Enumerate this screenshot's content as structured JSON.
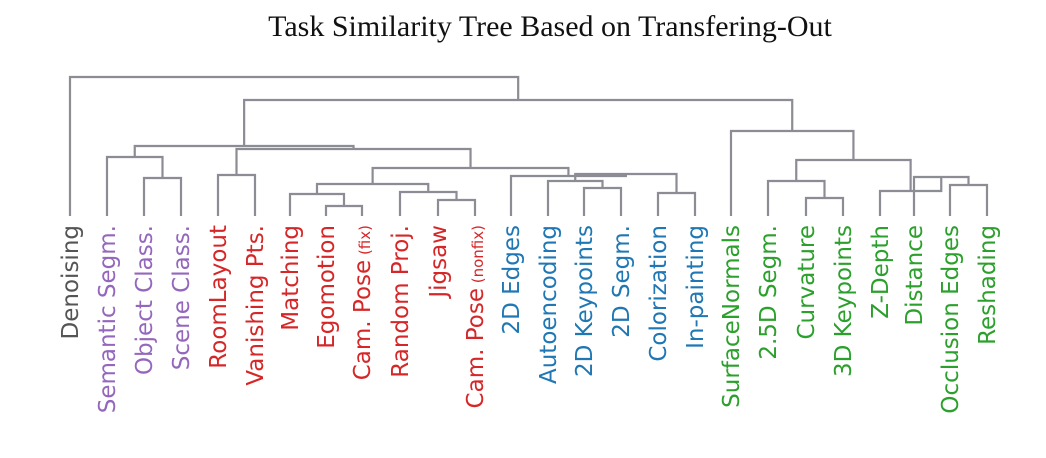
{
  "title": "Task Similarity Tree Based on Transfering-Out",
  "colors": {
    "branch": "#8c8c94",
    "gray": "#555555",
    "purple": "#9467bd",
    "red": "#d62728",
    "blue": "#1f77b4",
    "green": "#2ca02c"
  },
  "leaves": [
    {
      "label": "Denoising",
      "sub": "",
      "group": "gray"
    },
    {
      "label": "Semantic Segm.",
      "sub": "",
      "group": "purple"
    },
    {
      "label": "Object Class.",
      "sub": "",
      "group": "purple"
    },
    {
      "label": "Scene Class.",
      "sub": "",
      "group": "purple"
    },
    {
      "label": "RoomLayout",
      "sub": "",
      "group": "red"
    },
    {
      "label": "Vanishing Pts.",
      "sub": "",
      "group": "red"
    },
    {
      "label": "Matching",
      "sub": "",
      "group": "red"
    },
    {
      "label": "Egomotion",
      "sub": "",
      "group": "red"
    },
    {
      "label": "Cam. Pose",
      "sub": "(fix)",
      "group": "red"
    },
    {
      "label": "Random Proj.",
      "sub": "",
      "group": "red"
    },
    {
      "label": "Jigsaw",
      "sub": "",
      "group": "red"
    },
    {
      "label": "Cam. Pose",
      "sub": "(nonfix)",
      "group": "red"
    },
    {
      "label": "2D Edges",
      "sub": "",
      "group": "blue"
    },
    {
      "label": "Autoencoding",
      "sub": "",
      "group": "blue"
    },
    {
      "label": "2D Keypoints",
      "sub": "",
      "group": "blue"
    },
    {
      "label": "2D Segm.",
      "sub": "",
      "group": "blue"
    },
    {
      "label": "Colorization",
      "sub": "",
      "group": "blue"
    },
    {
      "label": "In-painting",
      "sub": "",
      "group": "blue"
    },
    {
      "label": "SurfaceNormals",
      "sub": "",
      "group": "green"
    },
    {
      "label": "2.5D Segm.",
      "sub": "",
      "group": "green"
    },
    {
      "label": "Curvature",
      "sub": "",
      "group": "green"
    },
    {
      "label": "3D Keypoints",
      "sub": "",
      "group": "green"
    },
    {
      "label": "Z-Depth",
      "sub": "",
      "group": "green"
    },
    {
      "label": "Distance",
      "sub": "",
      "group": "green"
    },
    {
      "label": "Occlusion Edges",
      "sub": "",
      "group": "green"
    },
    {
      "label": "Reshading",
      "sub": "",
      "group": "green"
    }
  ]
}
